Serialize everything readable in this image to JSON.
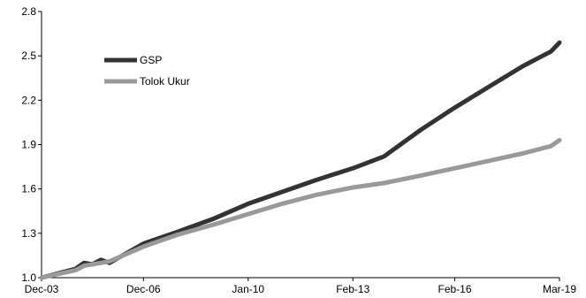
{
  "chart_data": {
    "type": "line",
    "title": "",
    "xlabel": "",
    "ylabel": "",
    "ylim": [
      1.0,
      2.8
    ],
    "y_ticks": [
      "1.0",
      "1.3",
      "1.6",
      "1.9",
      "2.2",
      "2.5",
      "2.8"
    ],
    "x_ticks": [
      "Dec-03",
      "Dec-06",
      "Jan-10",
      "Feb-13",
      "Feb-16",
      "Mar-19"
    ],
    "grid": false,
    "legend_position": "top-left",
    "x": [
      "Dec-03",
      "Dec-04",
      "Mar-05",
      "Jun-05",
      "Sep-05",
      "Dec-05",
      "Dec-06",
      "Dec-07",
      "Jan-09",
      "Jan-10",
      "Jan-11",
      "Jan-12",
      "Feb-13",
      "Jan-14",
      "Feb-15",
      "Feb-16",
      "Feb-17",
      "Feb-18",
      "Dec-18",
      "Mar-19"
    ],
    "series": [
      {
        "name": "GSP",
        "color": "#333333",
        "values": [
          1.0,
          1.06,
          1.1,
          1.09,
          1.12,
          1.1,
          1.23,
          1.31,
          1.4,
          1.5,
          1.58,
          1.66,
          1.74,
          1.82,
          2.0,
          2.15,
          2.29,
          2.43,
          2.53,
          2.59
        ]
      },
      {
        "name": "Tolok Ukur",
        "color": "#999999",
        "values": [
          1.0,
          1.05,
          1.08,
          1.09,
          1.1,
          1.11,
          1.21,
          1.29,
          1.36,
          1.43,
          1.5,
          1.56,
          1.61,
          1.64,
          1.69,
          1.74,
          1.79,
          1.84,
          1.89,
          1.93
        ]
      }
    ]
  }
}
